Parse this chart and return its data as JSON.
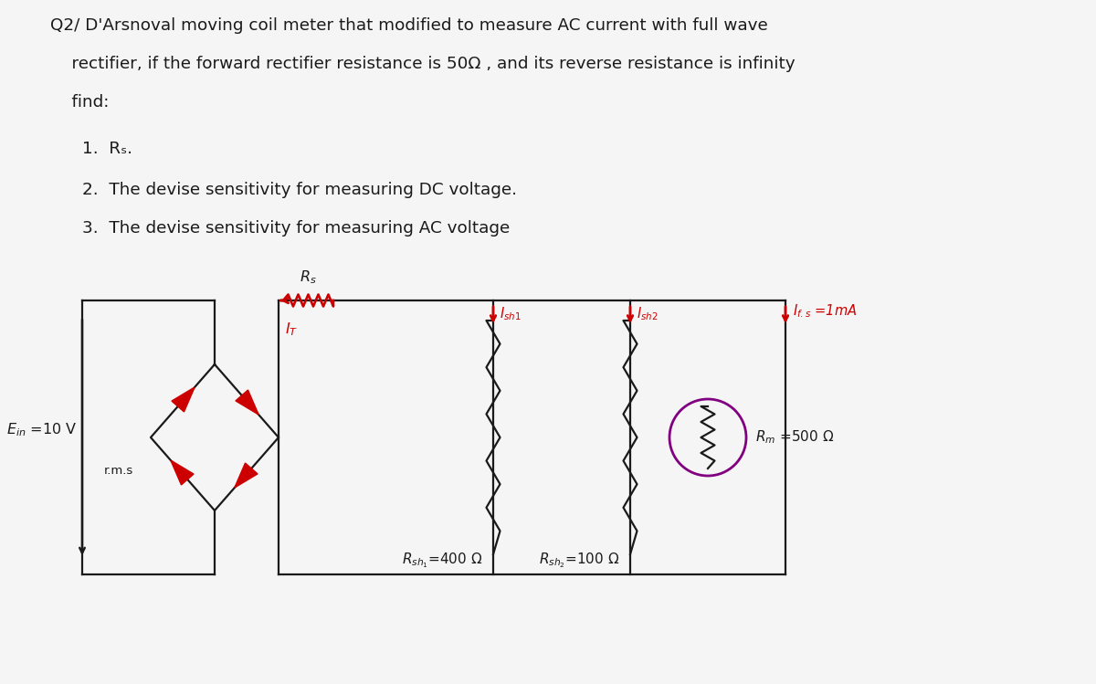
{
  "bg_color": "#f5f5f5",
  "text_color": "#1a1a1a",
  "circuit_color": "#1a1a1a",
  "red_color": "#cc0000",
  "purple_color": "#800080",
  "title_line1": "Q2/ D'Arsnoval moving coil meter that modified to measure AC current with full wave",
  "title_line2": "    rectifier, if the forward rectifier resistance is 50Ω , and its reverse resistance is infinity",
  "title_line3": "    find:",
  "item1": "1.  Rₛ.",
  "item2": "2.  The devise sensitivity for measuring DC voltage.",
  "item3": "3.  The devise sensitivity for measuring AC voltage",
  "lw_circuit": 1.6,
  "lw_resistor": 1.6,
  "fs_main": 13.2,
  "fs_label": 11.5,
  "fs_small": 10.5
}
